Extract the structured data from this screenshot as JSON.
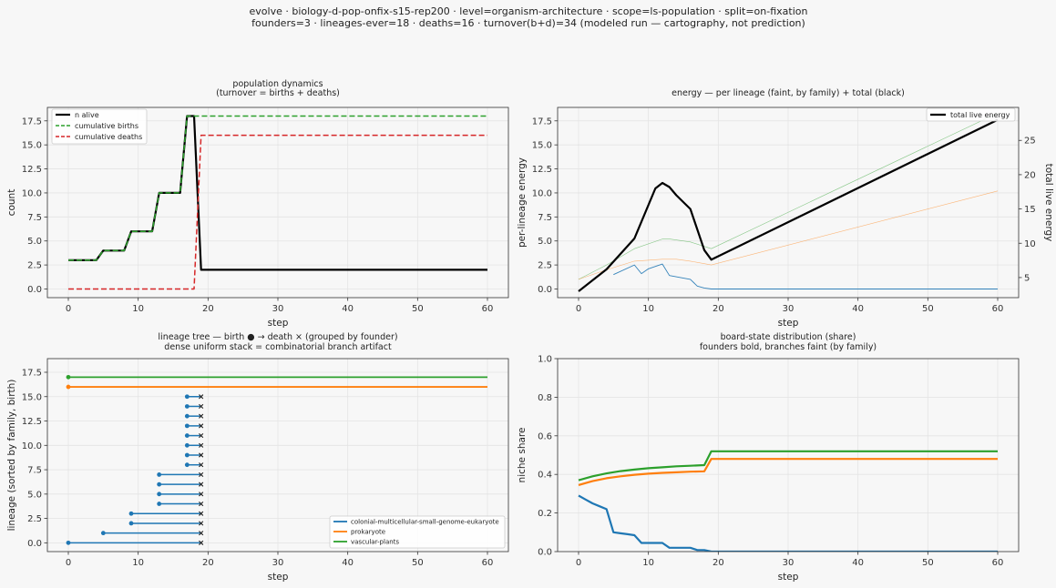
{
  "figure": {
    "title_line1": "evolve · biology-d-pop-onfix-s15-rep200 · level=organism-architecture · scope=ls-population · split=on-fixation",
    "title_line2": "founders=3 · lineages-ever=18 · deaths=16 · turnover(b+d)=34   (modeled run — cartography, not prediction)"
  },
  "colors": {
    "green": "#2ca02c",
    "red": "#d62728",
    "blue": "#1f77b4",
    "orange": "#ff7f0e",
    "black": "#000000"
  },
  "chart_data": [
    {
      "id": "population",
      "type": "line",
      "title": "population dynamics",
      "subtitle": "(turnover = births + deaths)",
      "xlabel": "step",
      "ylabel": "count",
      "xlim": [
        -3,
        63
      ],
      "ylim": [
        -0.9,
        18.9
      ],
      "xticks": [
        0,
        10,
        20,
        30,
        40,
        50,
        60
      ],
      "yticks": [
        0.0,
        2.5,
        5.0,
        7.5,
        10.0,
        12.5,
        15.0,
        17.5
      ],
      "tick_decimals": 1,
      "grid": true,
      "legend_position": "top-left",
      "series": [
        {
          "name": "n alive",
          "color": "#000000",
          "dash": "",
          "width": 2.2,
          "x": [
            0,
            4,
            5,
            8,
            9,
            12,
            13,
            16,
            17,
            18,
            19,
            60
          ],
          "y": [
            3,
            3,
            4,
            4,
            6,
            6,
            10,
            10,
            18,
            18,
            2,
            2
          ]
        },
        {
          "name": "cumulative births",
          "color": "#2ca02c",
          "dash": "6,3",
          "width": 1.5,
          "x": [
            0,
            4,
            5,
            8,
            9,
            12,
            13,
            16,
            17,
            60
          ],
          "y": [
            3,
            3,
            4,
            4,
            6,
            6,
            10,
            10,
            18,
            18
          ]
        },
        {
          "name": "cumulative deaths",
          "color": "#d62728",
          "dash": "6,3",
          "width": 1.5,
          "x": [
            0,
            18,
            19,
            60
          ],
          "y": [
            0,
            0,
            16,
            16
          ]
        }
      ]
    },
    {
      "id": "energy",
      "type": "line",
      "title": "energy — per lineage (faint, by family) + total (black)",
      "xlabel": "step",
      "ylabel": "per-lineage energy",
      "y2label": "total live energy",
      "xlim": [
        -3,
        63
      ],
      "ylim": [
        -0.9,
        18.9
      ],
      "y2lim": [
        2.07,
        29.81
      ],
      "xticks": [
        0,
        10,
        20,
        30,
        40,
        50,
        60
      ],
      "yticks": [
        0.0,
        2.5,
        5.0,
        7.5,
        10.0,
        12.5,
        15.0,
        17.5
      ],
      "y2ticks": [
        5,
        10,
        15,
        20,
        25
      ],
      "tick_decimals": 1,
      "grid": true,
      "legend_position": "top-right",
      "series": [
        {
          "color": "#2ca02c",
          "axis": "left",
          "width": 0.6,
          "opacity": 0.55,
          "x": [
            0,
            4,
            8,
            12,
            13,
            16,
            19,
            60
          ],
          "y": [
            1.0,
            2.5,
            4.2,
            5.2,
            5.2,
            4.9,
            4.2,
            18.3
          ]
        },
        {
          "color": "#ff7f0e",
          "axis": "left",
          "width": 0.6,
          "opacity": 0.55,
          "x": [
            0,
            4,
            8,
            12,
            14,
            16,
            19,
            60
          ],
          "y": [
            1.0,
            2.0,
            2.9,
            3.1,
            3.1,
            2.9,
            2.5,
            10.2
          ]
        },
        {
          "color": "#1f77b4",
          "axis": "left",
          "width": 0.9,
          "opacity": 0.9,
          "x": [
            5,
            8,
            9,
            10,
            12,
            13,
            16,
            17,
            18,
            19,
            60
          ],
          "y": [
            1.5,
            2.5,
            1.6,
            2.1,
            2.6,
            1.4,
            1.0,
            0.3,
            0.1,
            0,
            0
          ]
        },
        {
          "name": "total live energy",
          "color": "#000000",
          "axis": "right",
          "width": 2.2,
          "opacity": 1,
          "x": [
            0,
            4,
            8,
            11,
            12,
            13,
            14,
            16,
            18,
            19,
            60
          ],
          "y": [
            3.0,
            6.2,
            10.7,
            18.0,
            18.8,
            18.2,
            17.0,
            15.0,
            9.0,
            7.6,
            28.0
          ]
        }
      ]
    },
    {
      "id": "lineage-tree",
      "type": "scatter",
      "title": "lineage tree — birth ● → death ×  (grouped by founder)",
      "subtitle": "dense uniform stack = combinatorial branch artifact",
      "xlabel": "step",
      "ylabel": "lineage (sorted by family, birth)",
      "xlim": [
        -3,
        63
      ],
      "ylim": [
        -0.9,
        18.9
      ],
      "xticks": [
        0,
        10,
        20,
        30,
        40,
        50,
        60
      ],
      "yticks": [
        0.0,
        2.5,
        5.0,
        7.5,
        10.0,
        12.5,
        15.0,
        17.5
      ],
      "tick_decimals": 1,
      "grid": true,
      "legend_position": "lower-right",
      "families": [
        {
          "name": "colonial-multicellular-small-genome-eukaryote",
          "color": "#1f77b4"
        },
        {
          "name": "prokaryote",
          "color": "#ff7f0e"
        },
        {
          "name": "vascular-plants",
          "color": "#2ca02c"
        }
      ],
      "lineages": [
        {
          "family": 0,
          "y": 0,
          "birth": 0,
          "end": 19,
          "died": true
        },
        {
          "family": 0,
          "y": 1,
          "birth": 5,
          "end": 19,
          "died": true
        },
        {
          "family": 0,
          "y": 2,
          "birth": 9,
          "end": 19,
          "died": true
        },
        {
          "family": 0,
          "y": 3,
          "birth": 9,
          "end": 19,
          "died": true
        },
        {
          "family": 0,
          "y": 4,
          "birth": 13,
          "end": 19,
          "died": true
        },
        {
          "family": 0,
          "y": 5,
          "birth": 13,
          "end": 19,
          "died": true
        },
        {
          "family": 0,
          "y": 6,
          "birth": 13,
          "end": 19,
          "died": true
        },
        {
          "family": 0,
          "y": 7,
          "birth": 13,
          "end": 19,
          "died": true
        },
        {
          "family": 0,
          "y": 8,
          "birth": 17,
          "end": 19,
          "died": true
        },
        {
          "family": 0,
          "y": 9,
          "birth": 17,
          "end": 19,
          "died": true
        },
        {
          "family": 0,
          "y": 10,
          "birth": 17,
          "end": 19,
          "died": true
        },
        {
          "family": 0,
          "y": 11,
          "birth": 17,
          "end": 19,
          "died": true
        },
        {
          "family": 0,
          "y": 12,
          "birth": 17,
          "end": 19,
          "died": true
        },
        {
          "family": 0,
          "y": 13,
          "birth": 17,
          "end": 19,
          "died": true
        },
        {
          "family": 0,
          "y": 14,
          "birth": 17,
          "end": 19,
          "died": true
        },
        {
          "family": 0,
          "y": 15,
          "birth": 17,
          "end": 19,
          "died": true
        },
        {
          "family": 1,
          "y": 16,
          "birth": 0,
          "end": 60,
          "died": false
        },
        {
          "family": 2,
          "y": 17,
          "birth": 0,
          "end": 60,
          "died": false
        }
      ]
    },
    {
      "id": "board-state",
      "type": "line",
      "title": "board-state distribution (share)",
      "subtitle": "founders bold, branches faint (by family)",
      "xlabel": "step",
      "ylabel": "niche share",
      "xlim": [
        -3,
        63
      ],
      "ylim": [
        0,
        1.0
      ],
      "xticks": [
        0,
        10,
        20,
        30,
        40,
        50,
        60
      ],
      "yticks": [
        0.0,
        0.2,
        0.4,
        0.6,
        0.8,
        1.0
      ],
      "tick_decimals": 1,
      "grid": true,
      "series": [
        {
          "color": "#2ca02c",
          "width": 2.2,
          "x": [
            0,
            2,
            4,
            6,
            8,
            10,
            12,
            14,
            16,
            18,
            19,
            60
          ],
          "y": [
            0.37,
            0.39,
            0.405,
            0.417,
            0.425,
            0.432,
            0.437,
            0.442,
            0.445,
            0.448,
            0.52,
            0.52
          ]
        },
        {
          "color": "#ff7f0e",
          "width": 2.2,
          "x": [
            0,
            2,
            4,
            6,
            8,
            10,
            12,
            14,
            16,
            18,
            19,
            60
          ],
          "y": [
            0.345,
            0.365,
            0.38,
            0.39,
            0.398,
            0.404,
            0.408,
            0.411,
            0.414,
            0.416,
            0.48,
            0.48
          ]
        },
        {
          "color": "#1f77b4",
          "width": 2.2,
          "x": [
            0,
            1,
            2,
            3,
            4,
            5,
            6,
            7,
            8,
            9,
            10,
            11,
            12,
            13,
            14,
            15,
            16,
            17,
            18,
            19,
            60
          ],
          "y": [
            0.29,
            0.27,
            0.25,
            0.235,
            0.22,
            0.1,
            0.095,
            0.09,
            0.085,
            0.045,
            0.045,
            0.045,
            0.045,
            0.02,
            0.02,
            0.02,
            0.02,
            0.008,
            0.008,
            0,
            0
          ]
        }
      ]
    }
  ]
}
